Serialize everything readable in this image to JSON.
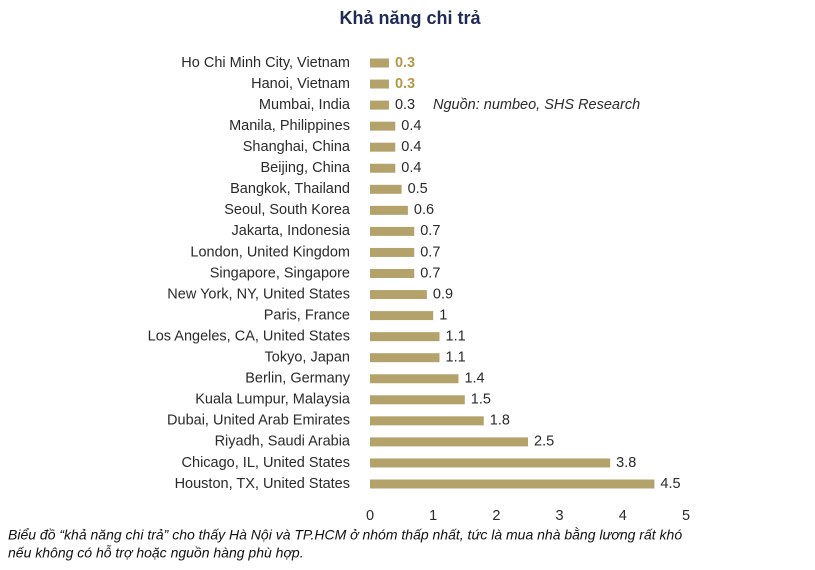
{
  "chart_data": {
    "type": "bar",
    "orientation": "horizontal",
    "title": "Khả năng chi trả",
    "categories": [
      "Ho Chi Minh City, Vietnam",
      "Hanoi, Vietnam",
      "Mumbai, India",
      "Manila, Philippines",
      "Shanghai, China",
      "Beijing, China",
      "Bangkok, Thailand",
      "Seoul, South Korea",
      "Jakarta, Indonesia",
      "London, United Kingdom",
      "Singapore, Singapore",
      "New York, NY, United States",
      "Paris, France",
      "Los Angeles, CA, United States",
      "Tokyo, Japan",
      "Berlin, Germany",
      "Kuala Lumpur, Malaysia",
      "Dubai, United Arab Emirates",
      "Riyadh, Saudi Arabia",
      "Chicago, IL, United States",
      "Houston, TX, United States"
    ],
    "values": [
      0.3,
      0.3,
      0.3,
      0.4,
      0.4,
      0.4,
      0.5,
      0.6,
      0.7,
      0.7,
      0.7,
      0.9,
      1,
      1.1,
      1.1,
      1.4,
      1.5,
      1.8,
      2.5,
      3.8,
      4.5
    ],
    "color": "#b3a36b",
    "highlight_indices": [
      0,
      1
    ],
    "highlight_color": "#b39a45",
    "xlim": [
      0,
      5
    ],
    "xticks": [
      0,
      1,
      2,
      3,
      4,
      5
    ],
    "grid": false,
    "annotation": "Nguồn: numbeo, SHS Research",
    "caption": [
      "Biểu đồ “khả năng chi trả” cho thấy Hà Nội và TP.HCM ở nhóm thấp nhất, tức là mua nhà bằng lương rất khó",
      "nếu không có hỗ trợ hoặc nguồn hàng phù hợp."
    ]
  }
}
